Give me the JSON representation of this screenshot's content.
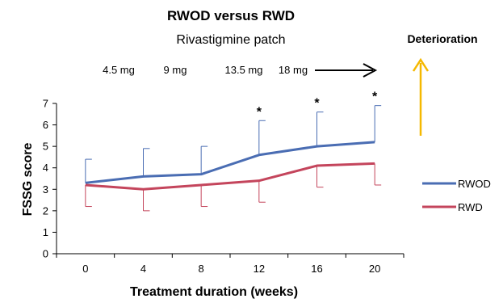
{
  "chart_data": {
    "type": "line",
    "title": "RWOD versus RWD",
    "subtitle": "Rivastigmine patch",
    "xlabel": "Treatment duration (weeks)",
    "ylabel": "FSSG score",
    "x": [
      0,
      4,
      8,
      12,
      16,
      20
    ],
    "ylim": [
      0,
      7
    ],
    "yticks": [
      0,
      1,
      2,
      3,
      4,
      5,
      6,
      7
    ],
    "series": [
      {
        "name": "RWOD",
        "color": "#4a6db3",
        "values": [
          3.3,
          3.6,
          3.7,
          4.6,
          5.0,
          5.2
        ],
        "error": [
          1.1,
          1.3,
          1.3,
          1.6,
          1.6,
          1.7
        ],
        "error_direction": "up"
      },
      {
        "name": "RWD",
        "color": "#c4455c",
        "values": [
          3.2,
          3.0,
          3.2,
          3.4,
          4.1,
          4.2
        ],
        "error": [
          1.0,
          1.0,
          1.0,
          1.0,
          1.0,
          1.0
        ],
        "error_direction": "down"
      }
    ],
    "significance_marks": [
      {
        "x": 12,
        "label": "*"
      },
      {
        "x": 16,
        "label": "*"
      },
      {
        "x": 20,
        "label": "*"
      }
    ],
    "doses": [
      "4.5 mg",
      "9 mg",
      "13.5 mg",
      "18 mg"
    ],
    "annotation": {
      "text": "Deterioration",
      "arrow_color": "#f5b800"
    },
    "legend_position": "right",
    "grid": false
  }
}
